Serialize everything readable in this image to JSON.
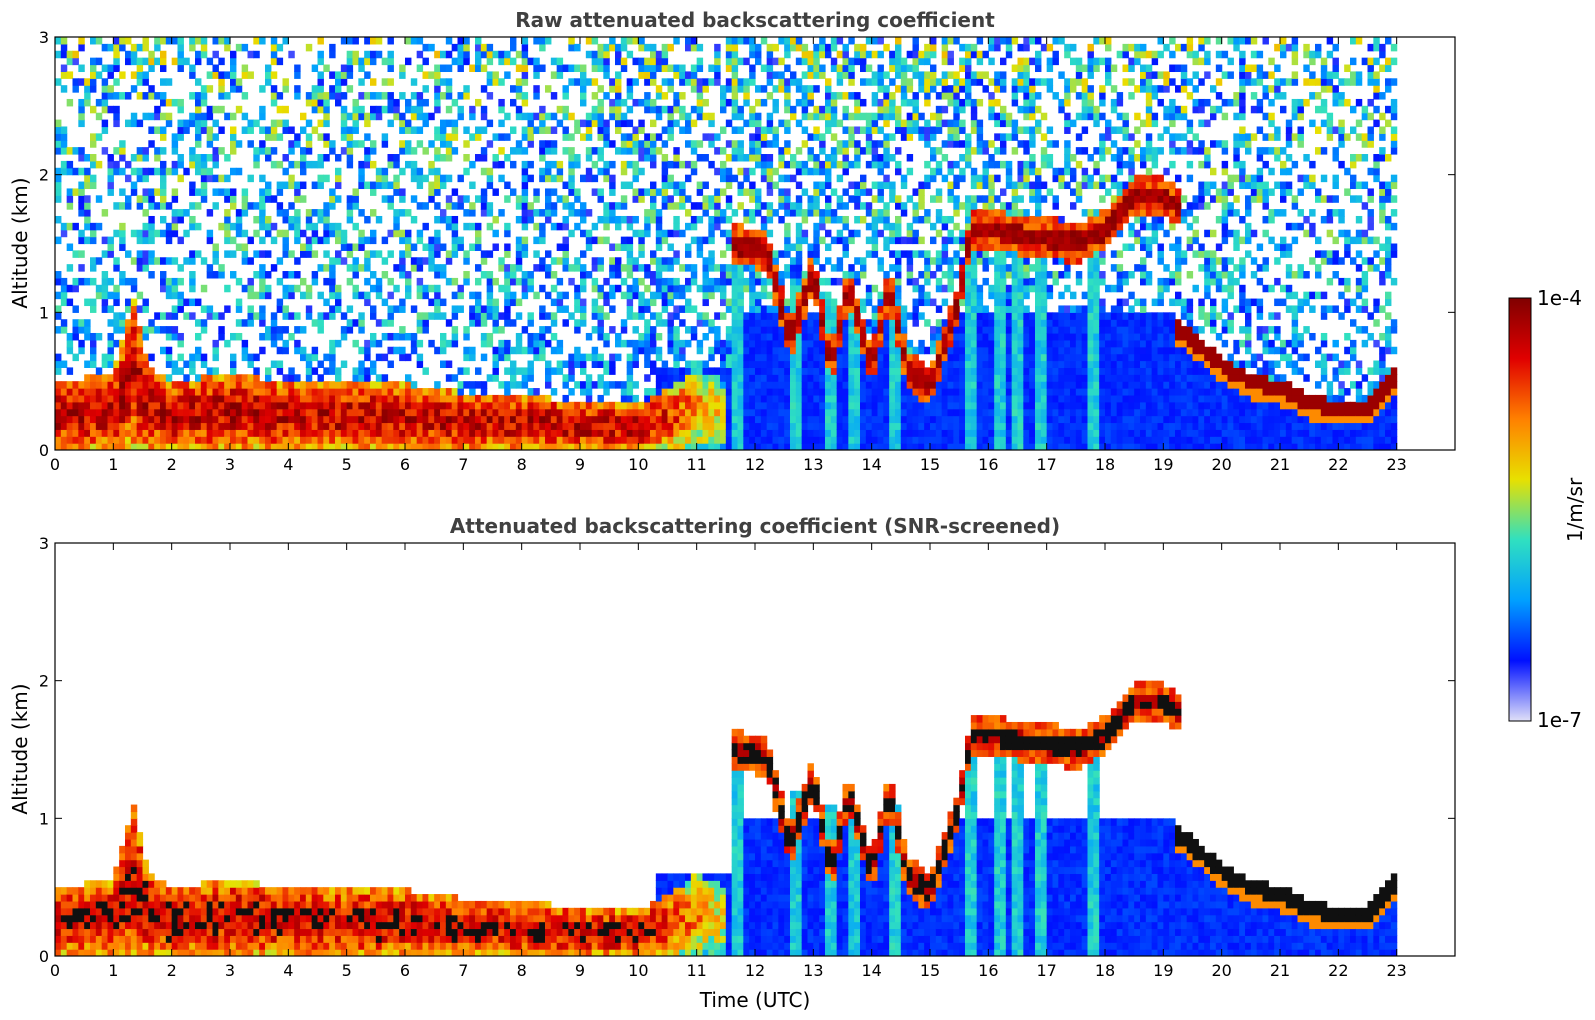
{
  "chart_data": [
    {
      "type": "heatmap",
      "title": "Raw attenuated backscattering coefficient",
      "ylabel": "Altitude (km)",
      "xlabel": "",
      "xlim": [
        0,
        24
      ],
      "ylim": [
        0,
        3
      ],
      "x_ticks": [
        "0",
        "1",
        "2",
        "3",
        "4",
        "5",
        "6",
        "7",
        "8",
        "9",
        "10",
        "11",
        "12",
        "13",
        "14",
        "15",
        "16",
        "17",
        "18",
        "19",
        "20",
        "21",
        "22",
        "23"
      ],
      "y_ticks": [
        "0",
        "1",
        "2",
        "3"
      ],
      "data_end_hour": 23,
      "screened": false
    },
    {
      "type": "heatmap",
      "title": "Attenuated backscattering coefficient (SNR-screened)",
      "ylabel": "Altitude (km)",
      "xlabel": "Time (UTC)",
      "xlim": [
        0,
        24
      ],
      "ylim": [
        0,
        3
      ],
      "x_ticks": [
        "0",
        "1",
        "2",
        "3",
        "4",
        "5",
        "6",
        "7",
        "8",
        "9",
        "10",
        "11",
        "12",
        "13",
        "14",
        "15",
        "16",
        "17",
        "18",
        "19",
        "20",
        "21",
        "22",
        "23"
      ],
      "y_ticks": [
        "0",
        "1",
        "2",
        "3"
      ],
      "data_end_hour": 23,
      "screened": true
    }
  ],
  "colorbar": {
    "label": "1/m/sr",
    "max_label": "1e-4",
    "min_label": "1e-7",
    "colors": [
      "#e0e0f8",
      "#0010ff",
      "#00a0ff",
      "#30e0c0",
      "#e8e000",
      "#ff8000",
      "#e00000",
      "#800000"
    ]
  },
  "layers": {
    "boundary_layer_top_km": [
      [
        0,
        0.5
      ],
      [
        1,
        0.55
      ],
      [
        1.35,
        1.1
      ],
      [
        1.6,
        0.6
      ],
      [
        2,
        0.5
      ],
      [
        3,
        0.55
      ],
      [
        4,
        0.5
      ],
      [
        5,
        0.48
      ],
      [
        6,
        0.48
      ],
      [
        7,
        0.42
      ],
      [
        8,
        0.4
      ],
      [
        9,
        0.35
      ],
      [
        10,
        0.33
      ],
      [
        10.5,
        0.45
      ],
      [
        11,
        0.6
      ],
      [
        11.5,
        0.5
      ],
      [
        12,
        0.4
      ]
    ],
    "elevated_layer_km": [
      [
        11.6,
        1.5
      ],
      [
        12.2,
        1.45
      ],
      [
        12.6,
        0.8
      ],
      [
        13,
        1.3
      ],
      [
        13.3,
        0.6
      ],
      [
        13.6,
        1.2
      ],
      [
        14,
        0.6
      ],
      [
        14.3,
        1.2
      ],
      [
        14.6,
        0.6
      ],
      [
        15,
        0.45
      ],
      [
        15.5,
        1.1
      ],
      [
        15.7,
        1.6
      ],
      [
        16.2,
        1.6
      ],
      [
        16.6,
        1.55
      ],
      [
        17,
        1.55
      ],
      [
        17.5,
        1.5
      ],
      [
        18,
        1.6
      ],
      [
        18.5,
        1.85
      ],
      [
        19,
        1.85
      ],
      [
        19.3,
        1.75
      ]
    ],
    "residual_layer_km": [
      [
        19.2,
        0.9
      ],
      [
        19.5,
        0.8
      ],
      [
        20,
        0.62
      ],
      [
        20.5,
        0.5
      ],
      [
        21,
        0.45
      ],
      [
        21.5,
        0.35
      ],
      [
        22,
        0.3
      ],
      [
        22.5,
        0.3
      ],
      [
        23,
        0.55
      ]
    ],
    "plumes": [
      {
        "x": 11.7,
        "top": 1.45
      },
      {
        "x": 12.7,
        "top": 1.2
      },
      {
        "x": 13.3,
        "top": 1.1
      },
      {
        "x": 13.7,
        "top": 1.0
      },
      {
        "x": 14.4,
        "top": 1.1
      },
      {
        "x": 15.7,
        "top": 1.6
      },
      {
        "x": 16.2,
        "top": 1.6
      },
      {
        "x": 16.5,
        "top": 1.5
      },
      {
        "x": 16.9,
        "top": 1.5
      },
      {
        "x": 17.8,
        "top": 1.5
      }
    ]
  }
}
